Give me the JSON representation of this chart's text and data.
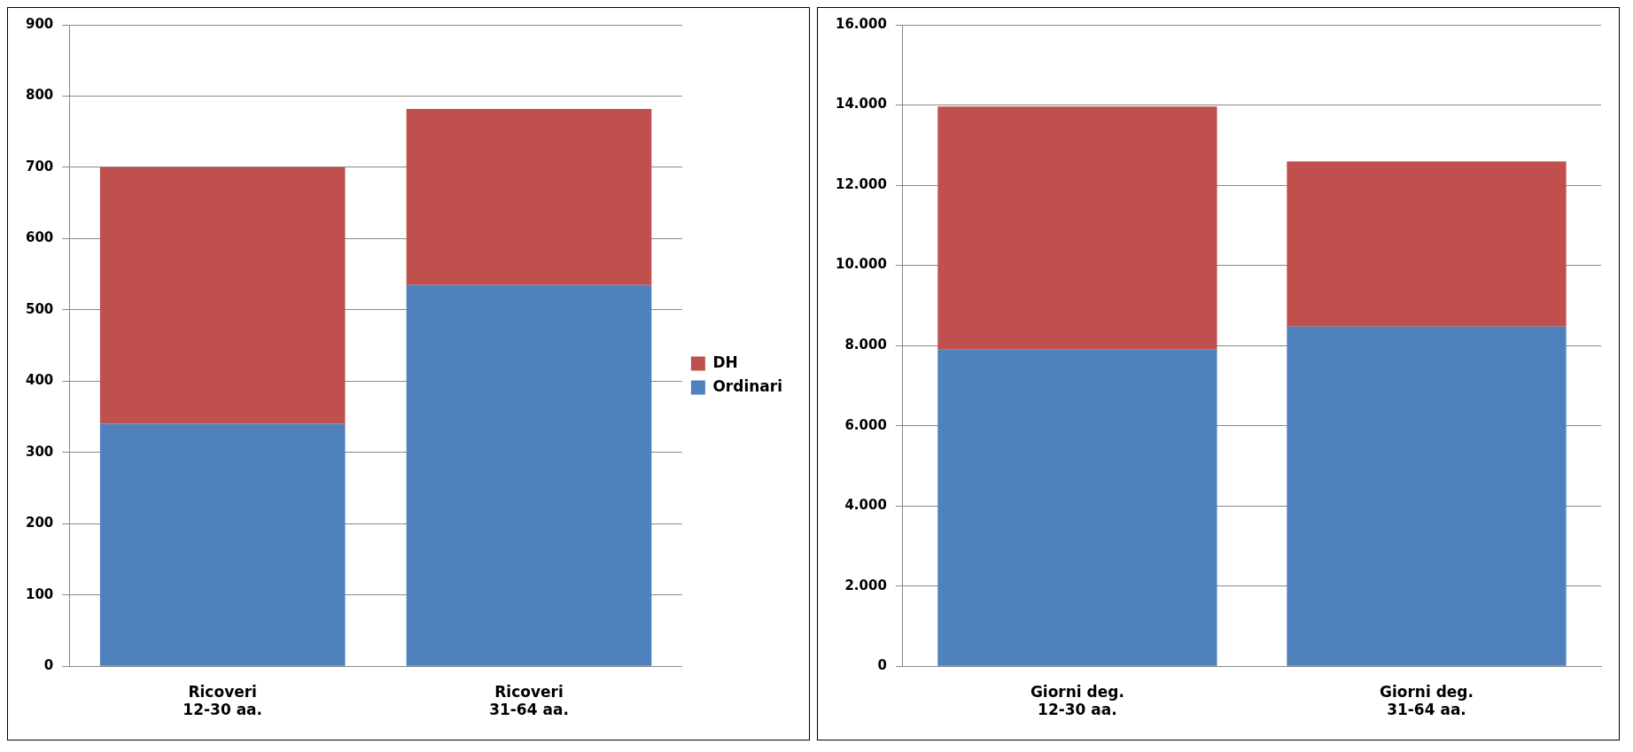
{
  "chart_data": [
    {
      "type": "bar",
      "stacked": true,
      "categories": [
        "Ricoveri\n12-30 aa.",
        "Ricoveri\n31-64 aa."
      ],
      "series": [
        {
          "name": "Ordinari",
          "color": "#4f81bd",
          "values": [
            340,
            535
          ]
        },
        {
          "name": "DH",
          "color": "#c0504d",
          "values": [
            360,
            247
          ]
        }
      ],
      "ylim": [
        0,
        900
      ],
      "yticks": [
        0,
        100,
        200,
        300,
        400,
        500,
        600,
        700,
        800,
        900
      ],
      "grid": "y",
      "legend": "right"
    },
    {
      "type": "bar",
      "stacked": true,
      "categories": [
        "Giorni deg.\n12-30 aa.",
        "Giorni deg.\n31-64 aa."
      ],
      "series": [
        {
          "color": "#4f81bd",
          "values": [
            7900,
            8470
          ]
        },
        {
          "color": "#c0504d",
          "values": [
            6060,
            4120
          ]
        }
      ],
      "ylim": [
        0,
        16000
      ],
      "yticks": [
        0,
        {
          "value": 2000,
          "label": "2.000"
        },
        {
          "value": 4000,
          "label": "4.000"
        },
        {
          "value": 6000,
          "label": "6.000"
        },
        {
          "value": 8000,
          "label": "8.000"
        },
        {
          "value": 10000,
          "label": "10.000"
        },
        {
          "value": 12000,
          "label": "12.000"
        },
        {
          "value": 14000,
          "label": "14.000"
        },
        {
          "value": 16000,
          "label": "16.000"
        }
      ],
      "grid": "y",
      "legend": false
    }
  ]
}
